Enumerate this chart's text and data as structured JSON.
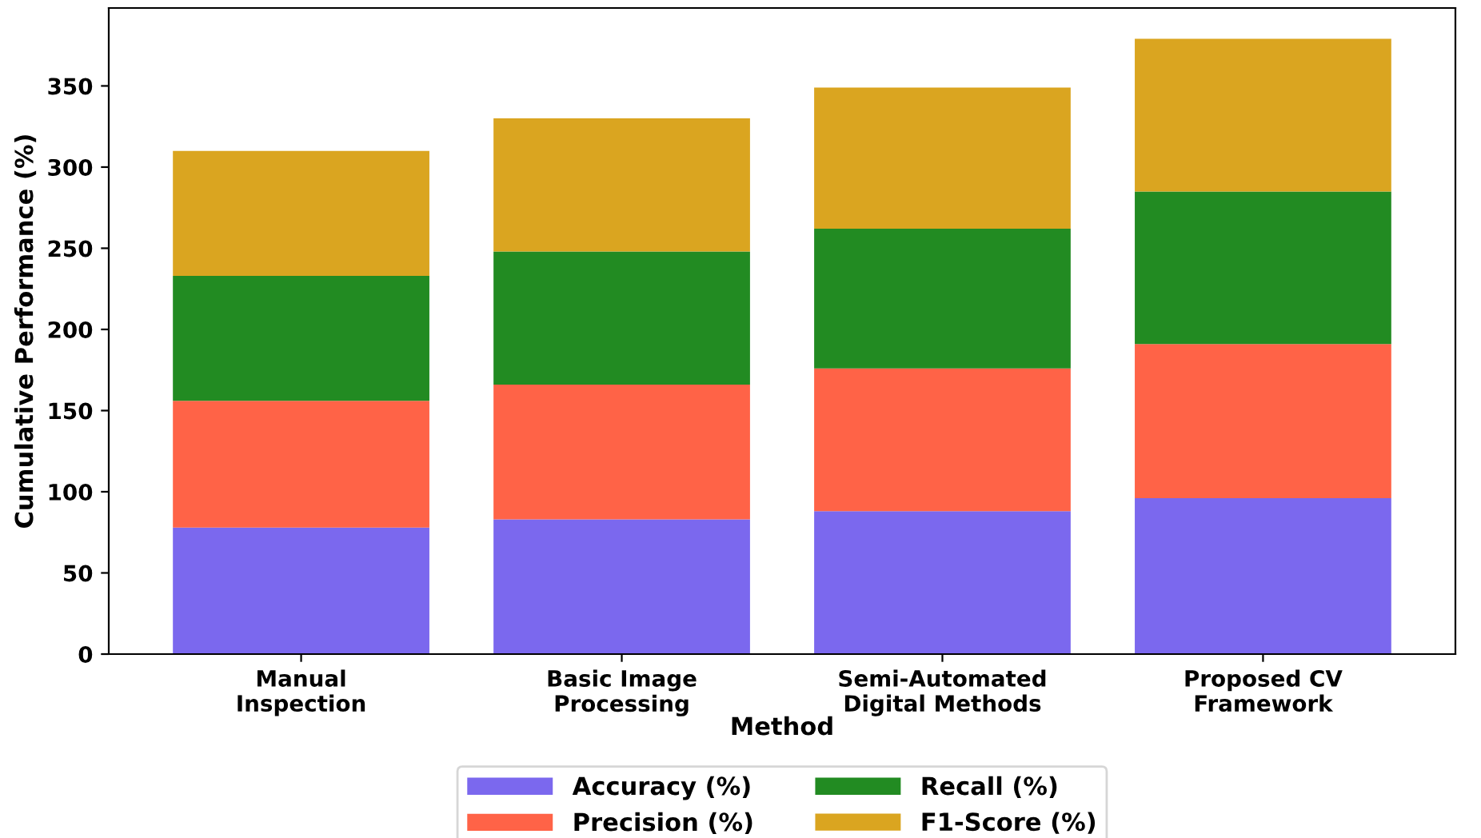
{
  "chart_data": {
    "type": "bar",
    "stacked": true,
    "xlabel": "Method",
    "ylabel": "Cumulative Performance (%)",
    "categories": [
      "Manual\nInspection",
      "Basic Image\nProcessing",
      "Semi-Automated\nDigital Methods",
      "Proposed CV\nFramework"
    ],
    "series": [
      {
        "name": "Accuracy (%)",
        "color": "#7b68ee",
        "values": [
          78,
          83,
          88,
          96
        ]
      },
      {
        "name": "Precision (%)",
        "color": "#ff6347",
        "values": [
          78,
          83,
          88,
          95
        ]
      },
      {
        "name": "Recall (%)",
        "color": "#228b22",
        "values": [
          77,
          82,
          86,
          94
        ]
      },
      {
        "name": "F1-Score (%)",
        "color": "#daa520",
        "values": [
          77,
          82,
          87,
          94
        ]
      }
    ],
    "ylim": [
      0,
      398
    ],
    "yticks": [
      0,
      50,
      100,
      150,
      200,
      250,
      300,
      350
    ],
    "grid": false,
    "legend": "bottom"
  }
}
